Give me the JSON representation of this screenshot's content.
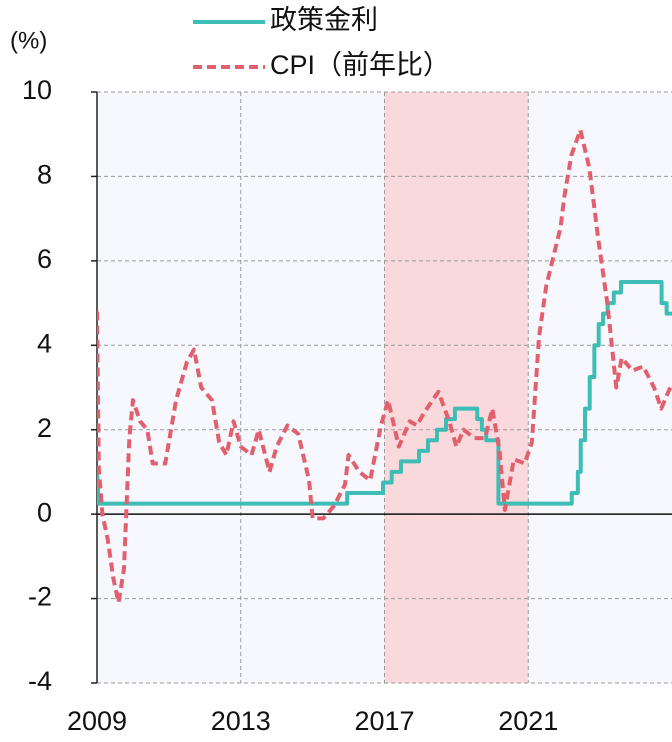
{
  "chart_data": {
    "type": "line",
    "y_unit_label": "(%)",
    "xlim": [
      2009,
      2025
    ],
    "xticks": [
      2009,
      2013,
      2017,
      2021
    ],
    "ylim": [
      -4,
      10
    ],
    "yticks": [
      -4,
      -2,
      0,
      2,
      4,
      6,
      8,
      10
    ],
    "grid": true,
    "shade": [
      2017,
      2021
    ],
    "shade_color": "#f9d9dc",
    "legend": "top",
    "series": [
      {
        "name": "政策金利",
        "color": "#3dbdb6",
        "style": "solid",
        "x": [
          2009.0,
          2009.05,
          2015.96,
          2015.96,
          2016.96,
          2016.96,
          2017.2,
          2017.2,
          2017.46,
          2017.46,
          2017.96,
          2017.96,
          2018.21,
          2018.21,
          2018.46,
          2018.46,
          2018.71,
          2018.71,
          2018.96,
          2018.96,
          2019.58,
          2019.58,
          2019.71,
          2019.71,
          2019.83,
          2019.83,
          2020.17,
          2020.17,
          2022.21,
          2022.21,
          2022.38,
          2022.38,
          2022.46,
          2022.46,
          2022.58,
          2022.58,
          2022.71,
          2022.71,
          2022.84,
          2022.84,
          2022.96,
          2022.96,
          2023.08,
          2023.08,
          2023.21,
          2023.21,
          2023.38,
          2023.38,
          2023.58,
          2023.58,
          2024.71,
          2024.71,
          2024.85,
          2024.85,
          2025.0
        ],
        "values": [
          1.0,
          0.25,
          0.25,
          0.5,
          0.5,
          0.75,
          0.75,
          1.0,
          1.0,
          1.25,
          1.25,
          1.5,
          1.5,
          1.75,
          1.75,
          2.0,
          2.0,
          2.25,
          2.25,
          2.5,
          2.5,
          2.25,
          2.25,
          2.0,
          2.0,
          1.75,
          1.75,
          0.25,
          0.25,
          0.5,
          0.5,
          1.0,
          1.0,
          1.75,
          1.75,
          2.5,
          2.5,
          3.25,
          3.25,
          4.0,
          4.0,
          4.5,
          4.5,
          4.75,
          4.75,
          5.0,
          5.0,
          5.25,
          5.25,
          5.5,
          5.5,
          5.0,
          5.0,
          4.75,
          4.75
        ]
      },
      {
        "name": "CPI（前年比）",
        "color": "#e2606d",
        "style": "dashed",
        "x": [
          2009.0,
          2009.05,
          2009.15,
          2009.3,
          2009.45,
          2009.6,
          2009.75,
          2009.9,
          2010.0,
          2010.2,
          2010.4,
          2010.55,
          2010.9,
          2011.2,
          2011.5,
          2011.7,
          2011.9,
          2012.2,
          2012.4,
          2012.6,
          2012.8,
          2013.0,
          2013.3,
          2013.5,
          2013.8,
          2014.0,
          2014.3,
          2014.6,
          2014.9,
          2015.0,
          2015.3,
          2015.6,
          2015.9,
          2016.0,
          2016.3,
          2016.6,
          2016.9,
          2017.1,
          2017.4,
          2017.7,
          2017.9,
          2018.1,
          2018.5,
          2018.8,
          2019.0,
          2019.2,
          2019.5,
          2019.8,
          2020.0,
          2020.2,
          2020.35,
          2020.6,
          2020.9,
          2021.1,
          2021.3,
          2021.5,
          2021.9,
          2022.0,
          2022.2,
          2022.45,
          2022.7,
          2022.95,
          2023.2,
          2023.45,
          2023.6,
          2023.9,
          2024.2,
          2024.5,
          2024.7,
          2024.95
        ],
        "values": [
          4.8,
          1.1,
          0.0,
          -0.6,
          -1.5,
          -2.1,
          -1.3,
          1.8,
          2.7,
          2.2,
          2.0,
          1.2,
          1.2,
          2.7,
          3.6,
          3.9,
          3.0,
          2.7,
          1.7,
          1.4,
          2.2,
          1.6,
          1.4,
          2.0,
          1.0,
          1.6,
          2.1,
          1.9,
          0.8,
          -0.1,
          -0.1,
          0.2,
          0.7,
          1.4,
          1.0,
          0.8,
          2.1,
          2.7,
          1.6,
          2.2,
          2.1,
          2.4,
          2.9,
          2.2,
          1.6,
          2.0,
          1.8,
          1.8,
          2.5,
          1.5,
          0.1,
          1.3,
          1.2,
          1.7,
          4.2,
          5.4,
          6.8,
          7.5,
          8.5,
          9.1,
          8.2,
          6.5,
          5.0,
          3.0,
          3.7,
          3.4,
          3.5,
          3.0,
          2.5,
          3.0
        ]
      }
    ]
  }
}
